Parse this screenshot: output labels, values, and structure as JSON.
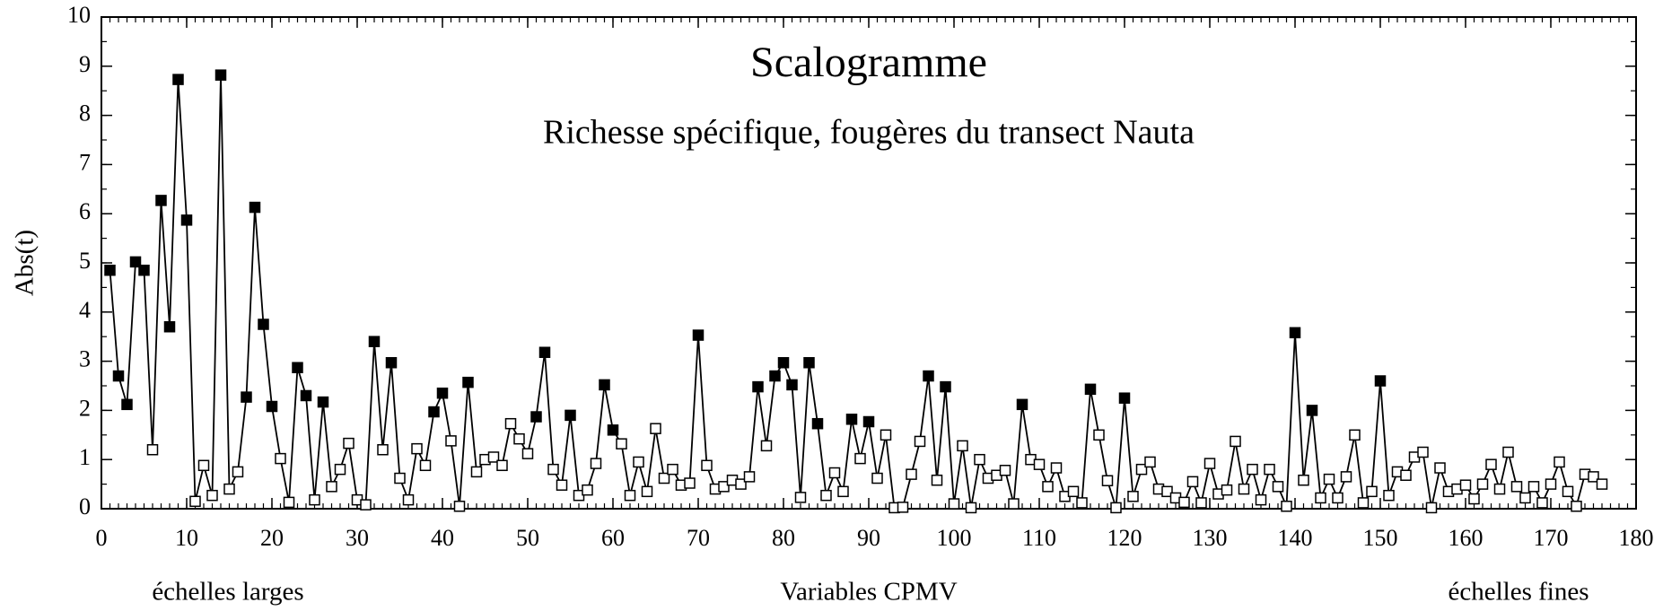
{
  "chart_data": {
    "type": "line",
    "title": "Scalogramme",
    "subtitle": "Richesse spécifique, fougères du transect Nauta",
    "xlabel": "Variables CPMV",
    "ylabel": "Abs(t)",
    "annotations": [
      "échelles larges",
      "échelles fines"
    ],
    "color": "#000000",
    "x": [
      1,
      2,
      3,
      4,
      5,
      6,
      7,
      8,
      9,
      10,
      11,
      12,
      13,
      14,
      15,
      16,
      17,
      18,
      19,
      20,
      21,
      22,
      23,
      24,
      25,
      26,
      27,
      28,
      29,
      30,
      31,
      32,
      33,
      34,
      35,
      36,
      37,
      38,
      39,
      40,
      41,
      42,
      43,
      44,
      45,
      46,
      47,
      48,
      49,
      50,
      51,
      52,
      53,
      54,
      55,
      56,
      57,
      58,
      59,
      60,
      61,
      62,
      63,
      64,
      65,
      66,
      67,
      68,
      69,
      70,
      71,
      72,
      73,
      74,
      75,
      76,
      77,
      78,
      79,
      80,
      81,
      82,
      83,
      84,
      85,
      86,
      87,
      88,
      89,
      90,
      91,
      92,
      93,
      94,
      95,
      96,
      97,
      98,
      99,
      100,
      101,
      102,
      103,
      104,
      105,
      106,
      107,
      108,
      109,
      110,
      111,
      112,
      113,
      114,
      115,
      116,
      117,
      118,
      119,
      120,
      121,
      122,
      123,
      124,
      125,
      126,
      127,
      128,
      129,
      130,
      131,
      132,
      133,
      134,
      135,
      136,
      137,
      138,
      139,
      140,
      141,
      142,
      143,
      144,
      145,
      146,
      147,
      148,
      149,
      150,
      151,
      152,
      153,
      154,
      155,
      156,
      157,
      158,
      159,
      160,
      161,
      162,
      163,
      164,
      165,
      166,
      167,
      168,
      169,
      170,
      171,
      172,
      173,
      174,
      175,
      176
    ],
    "values": [
      4.85,
      2.7,
      2.12,
      5.02,
      4.85,
      1.2,
      6.27,
      3.7,
      8.73,
      5.87,
      0.15,
      0.88,
      0.27,
      8.82,
      0.4,
      0.75,
      2.27,
      6.13,
      3.75,
      2.08,
      1.02,
      0.13,
      2.87,
      2.3,
      0.18,
      2.17,
      0.45,
      0.8,
      1.33,
      0.18,
      0.08,
      3.4,
      1.2,
      2.97,
      0.62,
      0.18,
      1.22,
      0.88,
      1.97,
      2.35,
      1.38,
      0.05,
      2.57,
      0.75,
      1.0,
      1.05,
      0.88,
      1.73,
      1.42,
      1.12,
      1.87,
      3.18,
      0.8,
      0.48,
      1.9,
      0.27,
      0.38,
      0.92,
      2.52,
      1.6,
      1.32,
      0.27,
      0.95,
      0.35,
      1.63,
      0.62,
      0.8,
      0.48,
      0.52,
      3.53,
      0.88,
      0.4,
      0.45,
      0.58,
      0.5,
      0.65,
      2.48,
      1.28,
      2.7,
      2.97,
      2.52,
      0.23,
      2.97,
      1.73,
      0.27,
      0.73,
      0.35,
      1.82,
      1.02,
      1.77,
      0.62,
      1.5,
      0.02,
      0.03,
      0.7,
      1.37,
      2.7,
      0.58,
      2.48,
      0.1,
      1.28,
      0.02,
      1.0,
      0.62,
      0.68,
      0.78,
      0.1,
      2.12,
      1.0,
      0.9,
      0.45,
      0.83,
      0.25,
      0.35,
      0.12,
      2.43,
      1.5,
      0.57,
      0.02,
      2.25,
      0.25,
      0.8,
      0.95,
      0.4,
      0.35,
      0.22,
      0.13,
      0.55,
      0.12,
      0.92,
      0.3,
      0.38,
      1.37,
      0.4,
      0.8,
      0.18,
      0.8,
      0.45,
      0.05,
      3.58,
      0.58,
      2.0,
      0.22,
      0.6,
      0.22,
      0.65,
      1.5,
      0.12,
      0.35,
      2.6,
      0.27,
      0.75,
      0.68,
      1.05,
      1.15,
      0.02,
      0.83,
      0.35,
      0.4,
      0.48,
      0.2,
      0.5,
      0.9,
      0.4,
      1.15,
      0.45,
      0.22,
      0.45,
      0.12,
      0.5,
      0.95,
      0.35,
      0.05,
      0.7,
      0.65,
      0.5
    ],
    "marker_filled": [
      true,
      true,
      true,
      true,
      true,
      false,
      true,
      true,
      true,
      true,
      false,
      false,
      false,
      true,
      false,
      false,
      true,
      true,
      true,
      true,
      false,
      false,
      true,
      true,
      false,
      true,
      false,
      false,
      false,
      false,
      false,
      true,
      false,
      true,
      false,
      false,
      false,
      false,
      true,
      true,
      false,
      false,
      true,
      false,
      false,
      false,
      false,
      false,
      false,
      false,
      true,
      true,
      false,
      false,
      true,
      false,
      false,
      false,
      true,
      true,
      false,
      false,
      false,
      false,
      false,
      false,
      false,
      false,
      false,
      true,
      false,
      false,
      false,
      false,
      false,
      false,
      true,
      false,
      true,
      true,
      true,
      false,
      true,
      true,
      false,
      false,
      false,
      true,
      false,
      true,
      false,
      false,
      false,
      false,
      false,
      false,
      true,
      false,
      true,
      false,
      false,
      false,
      false,
      false,
      false,
      false,
      false,
      true,
      false,
      false,
      false,
      false,
      false,
      false,
      false,
      true,
      false,
      false,
      false,
      true,
      false,
      false,
      false,
      false,
      false,
      false,
      false,
      false,
      false,
      false,
      false,
      false,
      false,
      false,
      false,
      false,
      false,
      false,
      false,
      true,
      false,
      true,
      false,
      false,
      false,
      false,
      false,
      false,
      false,
      true,
      false,
      false,
      false,
      false,
      false,
      false,
      false,
      false,
      false,
      false,
      false,
      false,
      false,
      false,
      false,
      false,
      false,
      false,
      false,
      false,
      false,
      false,
      false,
      false,
      false,
      false
    ],
    "xlim": [
      0,
      180
    ],
    "xticks": [
      0,
      10,
      20,
      30,
      40,
      50,
      60,
      70,
      80,
      90,
      100,
      110,
      120,
      130,
      140,
      150,
      160,
      170,
      180
    ],
    "xminor": 1,
    "ylim": [
      0,
      10
    ],
    "yticks": [
      0,
      1,
      2,
      3,
      4,
      5,
      6,
      7,
      8,
      9,
      10
    ],
    "yminor": 0.5
  }
}
